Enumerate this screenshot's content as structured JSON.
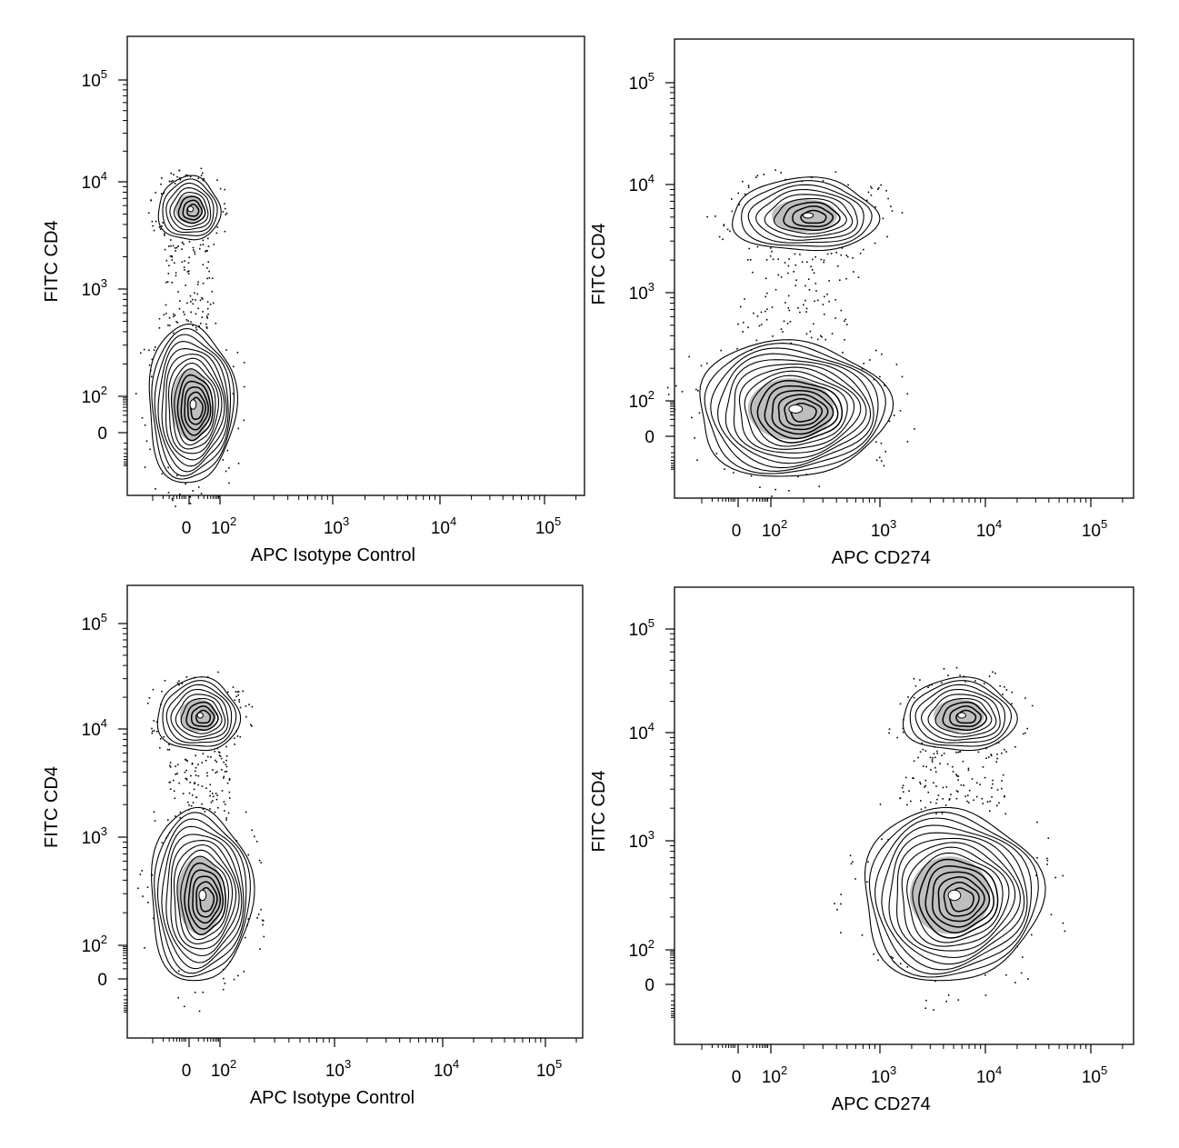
{
  "chart_data": [
    {
      "type": "contour",
      "xlabel": "APC Isotype Control",
      "ylabel": "FITC CD4",
      "x_scale": "biexponential",
      "y_scale": "biexponential",
      "x_ticks": [
        "0",
        "10^2",
        "10^3",
        "10^4",
        "10^5"
      ],
      "y_ticks": [
        "0",
        "10^2",
        "10^3",
        "10^4",
        "10^5"
      ],
      "populations": [
        {
          "x_center": 10,
          "y_center": 5200
        },
        {
          "x_center": 10,
          "y_center": 60
        }
      ]
    },
    {
      "type": "contour",
      "xlabel": "APC CD274",
      "ylabel": "FITC CD4",
      "x_scale": "biexponential",
      "y_scale": "biexponential",
      "x_ticks": [
        "0",
        "10^2",
        "10^3",
        "10^4",
        "10^5"
      ],
      "y_ticks": [
        "0",
        "10^2",
        "10^3",
        "10^4",
        "10^5"
      ],
      "populations": [
        {
          "x_center": 220,
          "y_center": 5500
        },
        {
          "x_center": 150,
          "y_center": 70
        }
      ]
    },
    {
      "type": "contour",
      "xlabel": "APC Isotype Control",
      "ylabel": "FITC CD4",
      "x_scale": "biexponential",
      "y_scale": "biexponential",
      "x_ticks": [
        "0",
        "10^2",
        "10^3",
        "10^4",
        "10^5"
      ],
      "y_ticks": [
        "0",
        "10^2",
        "10^3",
        "10^4",
        "10^5"
      ],
      "populations": [
        {
          "x_center": 30,
          "y_center": 14000
        },
        {
          "x_center": 30,
          "y_center": 330
        }
      ]
    },
    {
      "type": "contour",
      "xlabel": "APC CD274",
      "ylabel": "FITC CD4",
      "x_scale": "biexponential",
      "y_scale": "biexponential",
      "x_ticks": [
        "0",
        "10^2",
        "10^3",
        "10^4",
        "10^5"
      ],
      "y_ticks": [
        "0",
        "10^2",
        "10^3",
        "10^4",
        "10^5"
      ],
      "populations": [
        {
          "x_center": 5500,
          "y_center": 13000
        },
        {
          "x_center": 7000,
          "y_center": 330
        }
      ]
    }
  ]
}
